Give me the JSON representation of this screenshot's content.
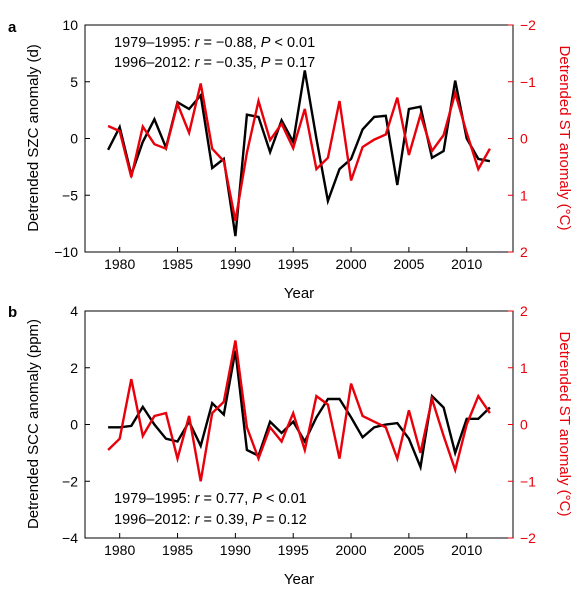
{
  "chart_data": [
    {
      "type": "line",
      "panel": "a",
      "xlabel": "Year",
      "ylabel_left": "Detrended SZC anomaly (d)",
      "ylabel_right": "Detrended ST anomaly (°C)",
      "xlim": [
        1977,
        2014
      ],
      "x_ticks": [
        "1980",
        "1985",
        "1990",
        "1995",
        "2000",
        "2005",
        "2010"
      ],
      "ylim_left": [
        -10,
        10
      ],
      "y_ticks_left": [
        "10",
        "5",
        "0",
        "−5",
        "−10"
      ],
      "ylim_right": [
        -2,
        2
      ],
      "right_axis_inverted": true,
      "y_ticks_right": [
        "−2",
        "−1",
        "0",
        "1",
        "2"
      ],
      "annotations": [
        {
          "period": "1979–1995: ",
          "r": "r",
          "r_val": " = −0.88, ",
          "p": "P",
          "p_val": " < 0.01"
        },
        {
          "period": "1996–2012: ",
          "r": "r",
          "r_val": " = −0.35, ",
          "p": "P",
          "p_val": " = 0.17"
        }
      ],
      "x": [
        1979,
        1980,
        1981,
        1982,
        1983,
        1984,
        1985,
        1986,
        1987,
        1988,
        1989,
        1990,
        1991,
        1992,
        1993,
        1994,
        1995,
        1996,
        1997,
        1998,
        1999,
        2000,
        2001,
        2002,
        2003,
        2004,
        2005,
        2006,
        2007,
        2008,
        2009,
        2010,
        2011,
        2012
      ],
      "series": [
        {
          "axis": "left",
          "color": "#000000",
          "values": [
            -1.0,
            1.0,
            -3.2,
            -0.3,
            1.7,
            -0.8,
            3.2,
            2.6,
            3.8,
            -2.6,
            -1.8,
            -8.6,
            2.1,
            1.9,
            -1.2,
            1.6,
            -0.3,
            6.0,
            0.0,
            -5.5,
            -2.7,
            -1.8,
            0.8,
            1.9,
            2.0,
            -4.1,
            2.6,
            2.8,
            -1.7,
            -1.1,
            5.1,
            0.0,
            -1.8,
            -2.0
          ]
        },
        {
          "axis": "right",
          "color": "#e8000b",
          "values": [
            -0.22,
            -0.13,
            0.68,
            -0.21,
            0.1,
            0.18,
            -0.61,
            -0.1,
            -0.97,
            0.18,
            0.4,
            1.45,
            0.25,
            -0.66,
            0.03,
            -0.26,
            0.17,
            -0.52,
            0.54,
            0.34,
            -0.66,
            0.74,
            0.15,
            0.02,
            -0.07,
            -0.72,
            0.29,
            -0.42,
            0.22,
            -0.06,
            -0.8,
            -0.1,
            0.54,
            0.18
          ]
        }
      ]
    },
    {
      "type": "line",
      "panel": "b",
      "xlabel": "Year",
      "ylabel_left": "Detrended SCC anomaly (ppm)",
      "ylabel_right": "Detrended ST anomaly (°C)",
      "xlim": [
        1977,
        2014
      ],
      "x_ticks": [
        "1980",
        "1985",
        "1990",
        "1995",
        "2000",
        "2005",
        "2010"
      ],
      "ylim_left": [
        -4,
        4
      ],
      "y_ticks_left": [
        "4",
        "2",
        "0",
        "−2",
        "−4"
      ],
      "ylim_right": [
        -2,
        2
      ],
      "right_axis_inverted": false,
      "y_ticks_right": [
        "2",
        "1",
        "0",
        "−1",
        "−2"
      ],
      "annotations": [
        {
          "period": "1979–1995: ",
          "r": "r",
          "r_val": " = 0.77, ",
          "p": "P",
          "p_val": " < 0.01"
        },
        {
          "period": "1996–2012: ",
          "r": "r",
          "r_val": " = 0.39, ",
          "p": "P",
          "p_val": " = 0.12"
        }
      ],
      "x": [
        1979,
        1980,
        1981,
        1982,
        1983,
        1984,
        1985,
        1986,
        1987,
        1988,
        1989,
        1990,
        1991,
        1992,
        1993,
        1994,
        1995,
        1996,
        1997,
        1998,
        1999,
        2000,
        2001,
        2002,
        2003,
        2004,
        2005,
        2006,
        2007,
        2008,
        2009,
        2010,
        2011,
        2012
      ],
      "series": [
        {
          "axis": "left",
          "color": "#000000",
          "values": [
            -0.1,
            -0.1,
            -0.05,
            0.62,
            0.0,
            -0.5,
            -0.6,
            0.1,
            -0.75,
            0.75,
            0.35,
            2.6,
            -0.9,
            -1.1,
            0.1,
            -0.3,
            0.1,
            -0.6,
            0.25,
            0.9,
            0.9,
            0.25,
            -0.45,
            -0.1,
            0.0,
            0.05,
            -0.5,
            -1.5,
            1.0,
            0.6,
            -1.0,
            0.2,
            0.2,
            0.6
          ]
        },
        {
          "axis": "right",
          "color": "#e8000b",
          "values": [
            -0.45,
            -0.25,
            0.8,
            -0.2,
            0.15,
            0.2,
            -0.6,
            0.15,
            -1.0,
            0.2,
            0.4,
            1.48,
            -0.05,
            -0.6,
            -0.05,
            -0.3,
            0.2,
            -0.45,
            0.5,
            0.35,
            -0.6,
            0.72,
            0.15,
            0.05,
            -0.05,
            -0.6,
            0.25,
            -0.5,
            0.45,
            -0.2,
            -0.8,
            0.0,
            0.5,
            0.2
          ]
        }
      ]
    }
  ]
}
